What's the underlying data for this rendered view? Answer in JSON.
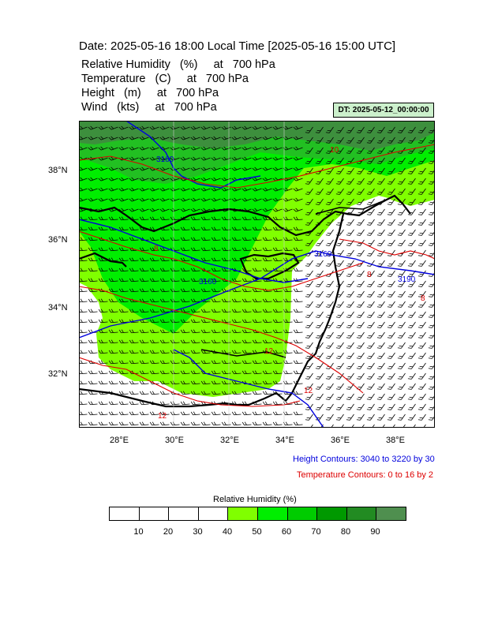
{
  "header": {
    "title": "Date: 2025-05-16  18:00 Local Time [2025-05-16  15:00 UTC]",
    "variables": [
      "Relative Humidity   (%)     at   700 hPa",
      "Temperature   (C)     at   700 hPa",
      "Height   (m)     at   700 hPa",
      "Wind   (kts)     at   700 hPa"
    ],
    "dt_label": "DT: 2025-05-12_00:00:00"
  },
  "axes": {
    "lat_labels": [
      "38°N",
      "36°N",
      "34°N",
      "32°N"
    ],
    "lon_labels": [
      "28°E",
      "30°E",
      "32°E",
      "34°E",
      "36°E",
      "38°E"
    ]
  },
  "contour_labels": {
    "height": [
      "3160",
      "3160",
      "3160",
      "3190"
    ],
    "temperature": [
      "10",
      "8",
      "8",
      "12",
      "12",
      "8",
      "12"
    ]
  },
  "notes": {
    "height": "Height Contours: 3040 to 3220 by 30",
    "temperature": "Temperature Contours: 0 to 16 by 2"
  },
  "colorbar": {
    "title": "Relative Humidity  (%)",
    "labels": [
      "10",
      "20",
      "30",
      "40",
      "50",
      "60",
      "70",
      "80",
      "90"
    ],
    "colors": [
      "#ffffff",
      "#ffffff",
      "#ffffff",
      "#ffffff",
      "#80ff00",
      "#00ee00",
      "#00cc00",
      "#009900",
      "#228b22",
      "#4f8f4f"
    ]
  },
  "colors": {
    "height_contour": "#0000dd",
    "temperature_contour": "#dd0000",
    "rh_light": "#80ff00",
    "rh_mid": "#00ee00",
    "rh_dark": "#3d8f3d"
  }
}
